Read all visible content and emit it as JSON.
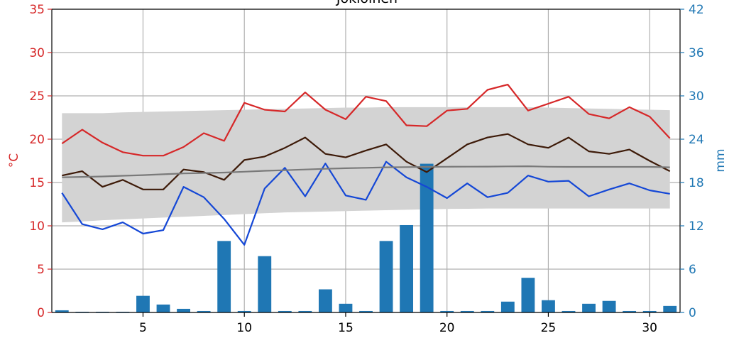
{
  "chart_data": {
    "type": "bar+line",
    "title": "Jokioinen",
    "ylabel_left": "°C",
    "ylabel_right": "mm",
    "xlim": [
      0.5,
      31.5
    ],
    "ylim_left": [
      0,
      35
    ],
    "ylim_right": [
      0,
      42
    ],
    "x_ticks": [
      "5",
      "10",
      "15",
      "20",
      "25",
      "30"
    ],
    "y_left_ticks": [
      "0",
      "5",
      "10",
      "15",
      "20",
      "25",
      "30",
      "35"
    ],
    "y_right_ticks": [
      "0",
      "6",
      "12",
      "18",
      "24",
      "30",
      "36",
      "42"
    ],
    "grid": true,
    "days": [
      1,
      2,
      3,
      4,
      5,
      6,
      7,
      8,
      9,
      10,
      11,
      12,
      13,
      14,
      15,
      16,
      17,
      18,
      19,
      20,
      21,
      22,
      23,
      24,
      25,
      26,
      27,
      28,
      29,
      30,
      31
    ],
    "precipitation_mm": [
      0.3,
      0.1,
      0.1,
      0.1,
      2.3,
      1.1,
      0.5,
      0.2,
      9.9,
      0.2,
      7.8,
      0.2,
      0.2,
      3.2,
      1.2,
      0.2,
      9.9,
      12.1,
      20.6,
      0.2,
      0.2,
      0.2,
      1.5,
      4.8,
      1.7,
      0.2,
      1.2,
      1.6,
      0.2,
      0.2,
      0.9
    ],
    "series": [
      {
        "role": "max",
        "color": "#d62728",
        "values": [
          19.5,
          21.1,
          19.6,
          18.5,
          18.1,
          18.1,
          19.1,
          20.7,
          19.8,
          24.2,
          23.4,
          23.2,
          25.4,
          23.4,
          22.3,
          24.9,
          24.4,
          21.6,
          21.5,
          23.3,
          23.5,
          25.7,
          26.3,
          23.3,
          24.1,
          24.9,
          22.9,
          22.4,
          23.7,
          22.6,
          20.1
        ]
      },
      {
        "role": "mean",
        "color": "#3d1a08",
        "values": [
          15.8,
          16.3,
          14.5,
          15.3,
          14.2,
          14.2,
          16.5,
          16.2,
          15.3,
          17.6,
          18.0,
          19.0,
          20.2,
          18.3,
          17.9,
          18.7,
          19.4,
          17.4,
          16.2,
          17.8,
          19.4,
          20.2,
          20.6,
          19.4,
          19.0,
          20.2,
          18.6,
          18.3,
          18.8,
          17.5,
          16.3
        ]
      },
      {
        "role": "min",
        "color": "#1447d6",
        "values": [
          13.8,
          10.2,
          9.6,
          10.4,
          9.1,
          9.5,
          14.5,
          13.3,
          10.8,
          7.8,
          14.3,
          16.7,
          13.4,
          17.2,
          13.5,
          13.0,
          17.4,
          15.6,
          14.5,
          13.2,
          14.9,
          13.3,
          13.8,
          15.8,
          15.1,
          15.2,
          13.4,
          14.2,
          14.9,
          14.1,
          13.7
        ]
      },
      {
        "role": "normal-mean",
        "color": "#7a7a7a",
        "values": [
          15.6,
          15.65,
          15.7,
          15.78,
          15.85,
          15.95,
          16.05,
          16.1,
          16.15,
          16.25,
          16.35,
          16.42,
          16.5,
          16.58,
          16.65,
          16.7,
          16.75,
          16.78,
          16.8,
          16.82,
          16.83,
          16.84,
          16.86,
          16.88,
          16.82,
          16.8,
          16.8,
          16.8,
          16.8,
          16.8,
          16.75
        ]
      }
    ],
    "normal_band": {
      "color": "#d3d3d3",
      "upper": [
        23.0,
        23.0,
        23.0,
        23.1,
        23.15,
        23.2,
        23.25,
        23.3,
        23.35,
        23.4,
        23.45,
        23.5,
        23.55,
        23.6,
        23.65,
        23.65,
        23.7,
        23.7,
        23.7,
        23.7,
        23.7,
        23.7,
        23.7,
        23.7,
        23.65,
        23.6,
        23.55,
        23.5,
        23.45,
        23.4,
        23.35
      ],
      "lower": [
        10.4,
        10.5,
        10.65,
        10.75,
        10.85,
        10.95,
        11.05,
        11.15,
        11.25,
        11.35,
        11.45,
        11.55,
        11.6,
        11.65,
        11.7,
        11.75,
        11.8,
        11.85,
        11.9,
        11.95,
        11.97,
        12.0,
        12.0,
        12.0,
        12.0,
        12.0,
        12.0,
        12.0,
        12.0,
        12.0,
        12.0
      ]
    },
    "bar_color": "#1f77b4",
    "colors": {
      "left_axis": "#d62728",
      "right_axis": "#1f77b4",
      "grid": "#b0b0b0"
    }
  }
}
